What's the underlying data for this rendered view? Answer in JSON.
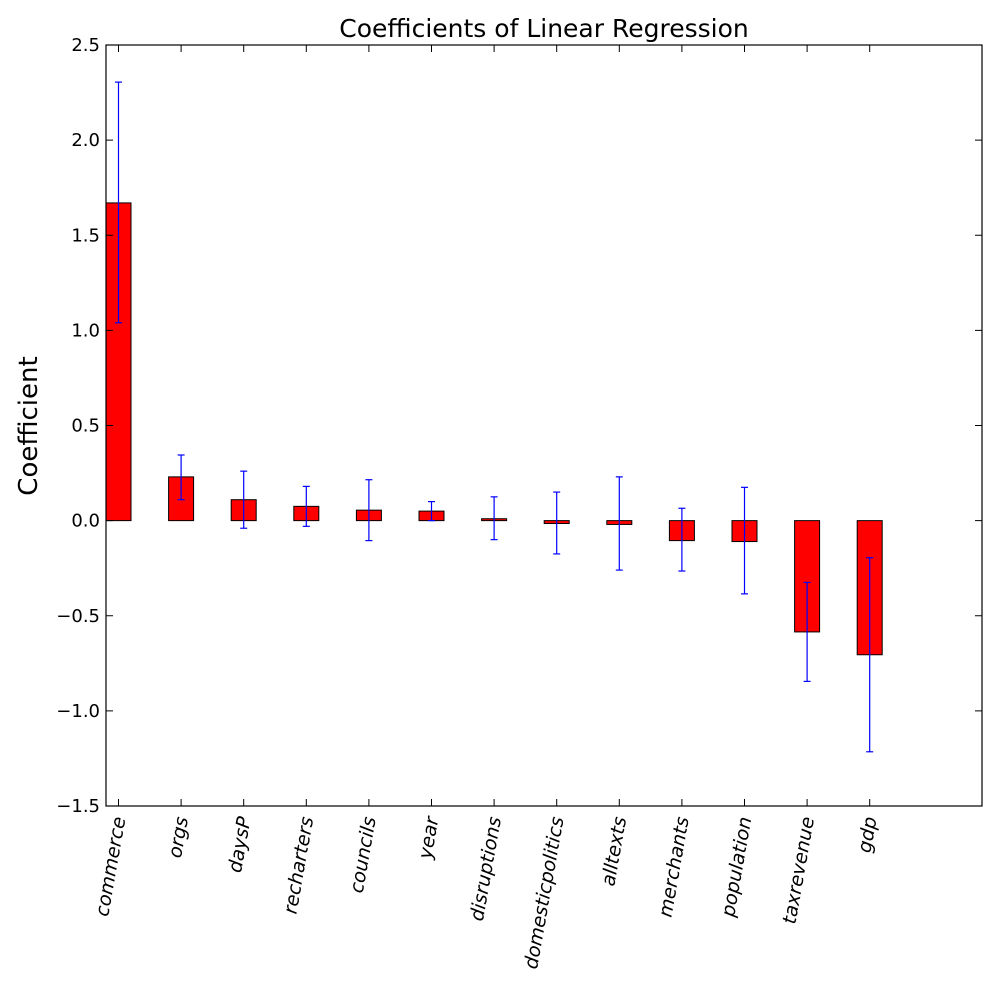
{
  "chart_data": {
    "type": "bar",
    "title": "Coefficients of Linear Regression",
    "ylabel": "Coefficient",
    "xlabel": "",
    "ylim": [
      -1.5,
      2.5
    ],
    "yticks": [
      -1.5,
      -1.0,
      -0.5,
      0.0,
      0.5,
      1.0,
      1.5,
      2.0,
      2.5
    ],
    "ytick_labels": [
      "−1.5",
      "−1.0",
      "−0.5",
      "0.0",
      "0.5",
      "1.0",
      "1.5",
      "2.0",
      "2.5"
    ],
    "grid": false,
    "legend": "none",
    "categories": [
      "commerce",
      "orgs",
      "daysP",
      "recharters",
      "councils",
      "year",
      "disruptions",
      "domesticpolitics",
      "alltexts",
      "merchants",
      "population",
      "taxrevenue",
      "gdp"
    ],
    "values": [
      1.67,
      0.23,
      0.11,
      0.075,
      0.055,
      0.05,
      0.01,
      -0.015,
      -0.02,
      -0.105,
      -0.11,
      -0.585,
      -0.705
    ],
    "error_low": [
      1.04,
      0.11,
      -0.04,
      -0.03,
      -0.105,
      0.0,
      -0.1,
      -0.175,
      -0.26,
      -0.265,
      -0.385,
      -0.845,
      -1.215
    ],
    "error_high": [
      2.305,
      0.345,
      0.26,
      0.18,
      0.215,
      0.1,
      0.125,
      0.15,
      0.23,
      0.065,
      0.175,
      -0.325,
      -0.195
    ],
    "bar_color": "#ff0000",
    "error_color": "#0000ff"
  }
}
